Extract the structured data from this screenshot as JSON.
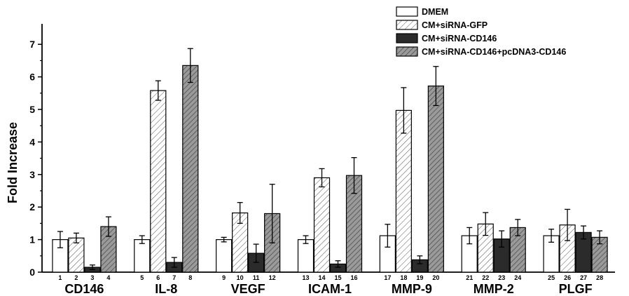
{
  "chart_data": {
    "type": "bar",
    "ylabel": "Fold Increase",
    "xlabel": "",
    "ylim": [
      0,
      7.5
    ],
    "yticks": [
      0,
      1,
      2,
      3,
      4,
      5,
      6,
      7
    ],
    "categories": [
      "CD146",
      "IL-8",
      "VEGF",
      "ICAM-1",
      "MMP-9",
      "MMP-2",
      "PLGF"
    ],
    "bar_numbers": [
      [
        "1",
        "2",
        "3",
        "4"
      ],
      [
        "5",
        "6",
        "7",
        "8"
      ],
      [
        "9",
        "10",
        "11",
        "12"
      ],
      [
        "13",
        "14",
        "15",
        "16"
      ],
      [
        "17",
        "18",
        "19",
        "20"
      ],
      [
        "21",
        "22",
        "23",
        "24"
      ],
      [
        "25",
        "26",
        "27",
        "28"
      ]
    ],
    "series": [
      {
        "name": "DMEM",
        "style": "white",
        "values": [
          1.0,
          1.0,
          1.0,
          1.0,
          1.12,
          1.12,
          1.12
        ],
        "errors": [
          0.25,
          0.12,
          0.07,
          0.12,
          0.35,
          0.25,
          0.2
        ]
      },
      {
        "name": "CM+siRNA-GFP",
        "style": "hatch-light",
        "values": [
          1.05,
          5.58,
          1.82,
          2.9,
          4.97,
          1.48,
          1.45
        ],
        "errors": [
          0.15,
          0.3,
          0.32,
          0.28,
          0.7,
          0.35,
          0.48
        ]
      },
      {
        "name": "CM+siRNA-CD146",
        "style": "dark",
        "values": [
          0.15,
          0.3,
          0.58,
          0.25,
          0.38,
          1.02,
          1.22
        ],
        "errors": [
          0.07,
          0.15,
          0.28,
          0.1,
          0.12,
          0.25,
          0.2
        ]
      },
      {
        "name": "CM+siRNA-CD146+pcDNA3-CD146",
        "style": "hatch-dark",
        "values": [
          1.4,
          6.35,
          1.8,
          2.97,
          5.72,
          1.37,
          1.07
        ],
        "errors": [
          0.3,
          0.52,
          0.9,
          0.55,
          0.6,
          0.25,
          0.2
        ]
      }
    ],
    "legend_position": "top-right",
    "colors": {
      "white": "#ffffff",
      "dark": "#2b2b2b",
      "hatch_light_bg": "#ffffff",
      "hatch_dark_bg": "#8c8c8c",
      "stroke": "#000000"
    }
  }
}
